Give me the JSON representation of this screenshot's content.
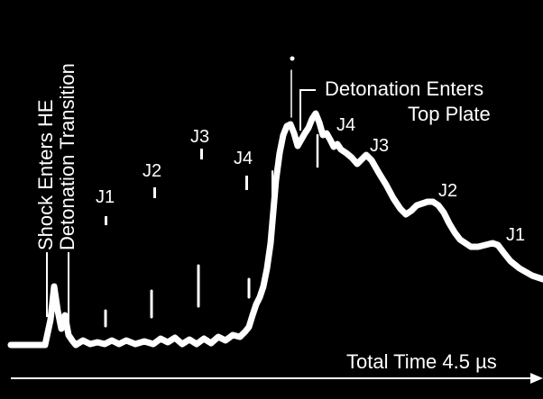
{
  "chart_data": {
    "type": "line",
    "title": "",
    "xlabel": "Total Time 4.5 µs",
    "ylabel": "",
    "grid": false,
    "colors": {
      "background": "#000000",
      "trace": "#ffffff"
    },
    "annotations": {
      "shock_enters_he": "Shock Enters HE",
      "detonation_transition": "Detonation Transition",
      "detonation_enters_line1": "Detonation Enters",
      "detonation_enters_line2": "Top Plate"
    },
    "upper_marker_labels": [
      "J1",
      "J2",
      "J3",
      "J4"
    ],
    "lower_marker_labels": [
      "J4",
      "J3",
      "J2",
      "J1"
    ]
  }
}
